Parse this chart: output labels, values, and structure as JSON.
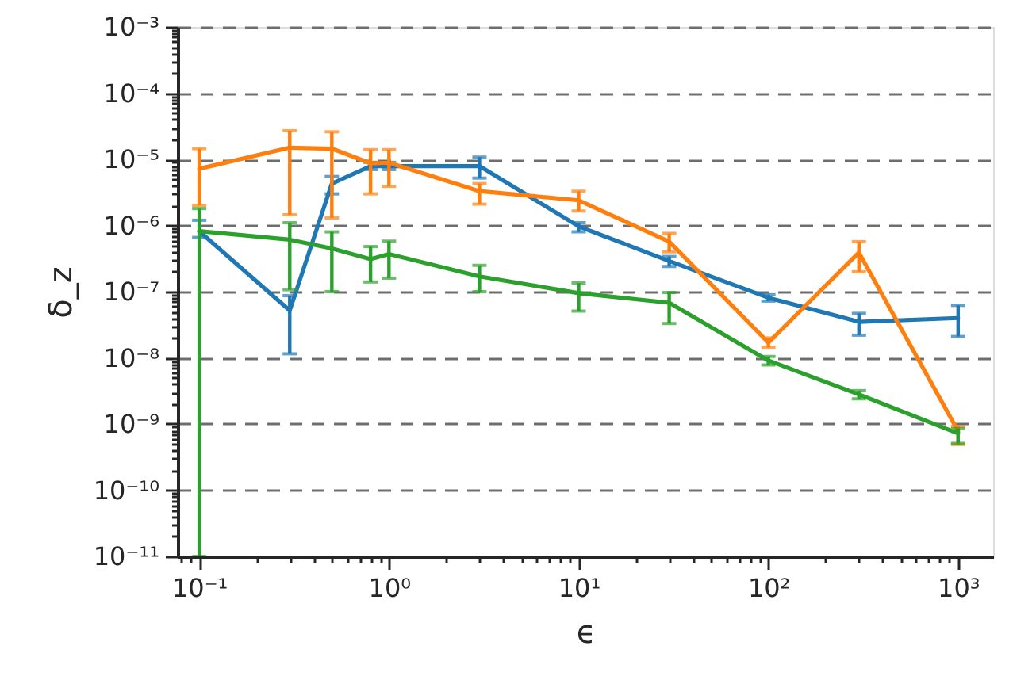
{
  "chart_data": {
    "type": "line",
    "xlabel": "ϵ",
    "ylabel": "δ_z",
    "log": "xy",
    "grid": "y",
    "marker": "none",
    "line_style": "solid",
    "x": [
      0.1,
      0.3,
      0.5,
      0.8,
      1,
      3,
      10,
      30,
      100,
      300,
      1000
    ],
    "series": [
      {
        "color": "#1f77b4",
        "values": [
          8.2e-07,
          5.2e-08,
          4.3e-06,
          7.9e-06,
          7.9e-06,
          7.9e-06,
          9.7e-07,
          2.9e-07,
          8.1e-08,
          3.5e-08,
          4e-08
        ],
        "errors": [
          [
            6.6e-07,
            1.2e-06
          ],
          [
            1.15e-08,
            8.7e-08
          ],
          [
            3e-06,
            5.5e-06
          ],
          [
            7e-06,
            9e-06
          ],
          [
            7e-06,
            9e-06
          ],
          [
            5.2e-06,
            1.08e-05
          ],
          [
            8e-07,
            1.1e-06
          ],
          [
            2.4e-07,
            3.4e-07
          ],
          [
            7.2e-08,
            9e-08
          ],
          [
            2.2e-08,
            4.7e-08
          ],
          [
            2.1e-08,
            6.2e-08
          ]
        ]
      },
      {
        "color": "#ff7f0e",
        "values": [
          7.2e-06,
          1.5e-05,
          1.45e-05,
          8.7e-06,
          8.9e-06,
          3.3e-06,
          2.4e-06,
          5.7e-07,
          1.7e-08,
          3.9e-07,
          7.8e-10
        ],
        "errors": [
          [
            2e-06,
            1.45e-05
          ],
          [
            1.45e-06,
            2.7e-05
          ],
          [
            1.3e-06,
            2.6e-05
          ],
          [
            3e-06,
            1.4e-05
          ],
          [
            3.9e-06,
            1.4e-05
          ],
          [
            2.1e-06,
            4.3e-06
          ],
          [
            1.65e-06,
            3.3e-06
          ],
          [
            4e-07,
            7.6e-07
          ],
          [
            1.45e-08,
            2e-08
          ],
          [
            2e-07,
            5.7e-07
          ],
          [
            4.9e-10,
            9.2e-10
          ]
        ]
      },
      {
        "color": "#2ca02c",
        "values": [
          8.2e-07,
          6.1e-07,
          4.5e-07,
          3.1e-07,
          3.7e-07,
          1.7e-07,
          9.5e-08,
          6.8e-08,
          9.1e-09,
          2.8e-09,
          7.2e-10
        ],
        "errors": [
          [
            1e-11,
            1.8e-06
          ],
          [
            1.07e-07,
            1.1e-06
          ],
          [
            1e-07,
            8e-07
          ],
          [
            1.4e-07,
            4.8e-07
          ],
          [
            1.6e-07,
            5.8e-07
          ],
          [
            1e-07,
            2.5e-07
          ],
          [
            5.1e-08,
            1.35e-07
          ],
          [
            3.3e-08,
            9.7e-08
          ],
          [
            7.8e-09,
            1.05e-08
          ],
          [
            2.4e-09,
            3.2e-09
          ],
          [
            5.1e-10,
            8.5e-10
          ]
        ]
      }
    ],
    "xlim": [
      0.077,
      1530
    ],
    "xticks": [
      {
        "value": 0.08,
        "label": null
      },
      {
        "value": 0.09,
        "label": null
      },
      {
        "value": 0.1,
        "label": "10⁻¹"
      },
      {
        "value": 0.2,
        "label": null
      },
      {
        "value": 0.3,
        "label": null
      },
      {
        "value": 0.4,
        "label": null
      },
      {
        "value": 0.5,
        "label": null
      },
      {
        "value": 0.6,
        "label": null
      },
      {
        "value": 0.7,
        "label": null
      },
      {
        "value": 0.8,
        "label": null
      },
      {
        "value": 0.9,
        "label": null
      },
      {
        "value": 1,
        "label": "10⁰"
      },
      {
        "value": 2,
        "label": null
      },
      {
        "value": 3,
        "label": null
      },
      {
        "value": 4,
        "label": null
      },
      {
        "value": 5,
        "label": null
      },
      {
        "value": 6,
        "label": null
      },
      {
        "value": 7,
        "label": null
      },
      {
        "value": 8,
        "label": null
      },
      {
        "value": 9,
        "label": null
      },
      {
        "value": 10,
        "label": "10¹"
      },
      {
        "value": 20,
        "label": null
      },
      {
        "value": 30,
        "label": null
      },
      {
        "value": 40,
        "label": null
      },
      {
        "value": 50,
        "label": null
      },
      {
        "value": 60,
        "label": null
      },
      {
        "value": 70,
        "label": null
      },
      {
        "value": 80,
        "label": null
      },
      {
        "value": 90,
        "label": null
      },
      {
        "value": 100,
        "label": "10²"
      },
      {
        "value": 200,
        "label": null
      },
      {
        "value": 300,
        "label": null
      },
      {
        "value": 400,
        "label": null
      },
      {
        "value": 500,
        "label": null
      },
      {
        "value": 600,
        "label": null
      },
      {
        "value": 700,
        "label": null
      },
      {
        "value": 800,
        "label": null
      },
      {
        "value": 900,
        "label": null
      },
      {
        "value": 1000,
        "label": "10³"
      }
    ],
    "ylim": [
      1e-11,
      0.001
    ],
    "yticks": [
      {
        "value": 1e-11,
        "label": "10⁻¹¹"
      },
      {
        "value": 2e-11,
        "label": null
      },
      {
        "value": 3e-11,
        "label": null
      },
      {
        "value": 4e-11,
        "label": null
      },
      {
        "value": 5e-11,
        "label": null
      },
      {
        "value": 6e-11,
        "label": null
      },
      {
        "value": 7e-11,
        "label": null
      },
      {
        "value": 8e-11,
        "label": null
      },
      {
        "value": 9e-11,
        "label": null
      },
      {
        "value": 1e-10,
        "label": "10⁻¹⁰"
      },
      {
        "value": 2e-10,
        "label": null
      },
      {
        "value": 3e-10,
        "label": null
      },
      {
        "value": 4e-10,
        "label": null
      },
      {
        "value": 5e-10,
        "label": null
      },
      {
        "value": 6e-10,
        "label": null
      },
      {
        "value": 7e-10,
        "label": null
      },
      {
        "value": 8e-10,
        "label": null
      },
      {
        "value": 9e-10,
        "label": null
      },
      {
        "value": 1e-09,
        "label": "10⁻⁹"
      },
      {
        "value": 2e-09,
        "label": null
      },
      {
        "value": 3e-09,
        "label": null
      },
      {
        "value": 4e-09,
        "label": null
      },
      {
        "value": 5e-09,
        "label": null
      },
      {
        "value": 6e-09,
        "label": null
      },
      {
        "value": 7e-09,
        "label": null
      },
      {
        "value": 8e-09,
        "label": null
      },
      {
        "value": 9e-09,
        "label": null
      },
      {
        "value": 1e-08,
        "label": "10⁻⁸"
      },
      {
        "value": 2e-08,
        "label": null
      },
      {
        "value": 3e-08,
        "label": null
      },
      {
        "value": 4e-08,
        "label": null
      },
      {
        "value": 5e-08,
        "label": null
      },
      {
        "value": 6e-08,
        "label": null
      },
      {
        "value": 7e-08,
        "label": null
      },
      {
        "value": 8e-08,
        "label": null
      },
      {
        "value": 9e-08,
        "label": null
      },
      {
        "value": 1e-07,
        "label": "10⁻⁷"
      },
      {
        "value": 2e-07,
        "label": null
      },
      {
        "value": 3e-07,
        "label": null
      },
      {
        "value": 4e-07,
        "label": null
      },
      {
        "value": 5e-07,
        "label": null
      },
      {
        "value": 6e-07,
        "label": null
      },
      {
        "value": 7e-07,
        "label": null
      },
      {
        "value": 8e-07,
        "label": null
      },
      {
        "value": 9e-07,
        "label": null
      },
      {
        "value": 1e-06,
        "label": "10⁻⁶"
      },
      {
        "value": 2e-06,
        "label": null
      },
      {
        "value": 3e-06,
        "label": null
      },
      {
        "value": 4e-06,
        "label": null
      },
      {
        "value": 5e-06,
        "label": null
      },
      {
        "value": 6e-06,
        "label": null
      },
      {
        "value": 7e-06,
        "label": null
      },
      {
        "value": 8e-06,
        "label": null
      },
      {
        "value": 9e-06,
        "label": null
      },
      {
        "value": 1e-05,
        "label": "10⁻⁵"
      },
      {
        "value": 2e-05,
        "label": null
      },
      {
        "value": 3e-05,
        "label": null
      },
      {
        "value": 4e-05,
        "label": null
      },
      {
        "value": 5e-05,
        "label": null
      },
      {
        "value": 6e-05,
        "label": null
      },
      {
        "value": 7e-05,
        "label": null
      },
      {
        "value": 8e-05,
        "label": null
      },
      {
        "value": 9e-05,
        "label": null
      },
      {
        "value": 0.0001,
        "label": "10⁻⁴"
      },
      {
        "value": 0.0002,
        "label": null
      },
      {
        "value": 0.0003,
        "label": null
      },
      {
        "value": 0.0004,
        "label": null
      },
      {
        "value": 0.0005,
        "label": null
      },
      {
        "value": 0.0006,
        "label": null
      },
      {
        "value": 0.0007,
        "label": null
      },
      {
        "value": 0.0008,
        "label": null
      },
      {
        "value": 0.0009,
        "label": null
      },
      {
        "value": 0.001,
        "label": "10⁻³"
      }
    ]
  }
}
